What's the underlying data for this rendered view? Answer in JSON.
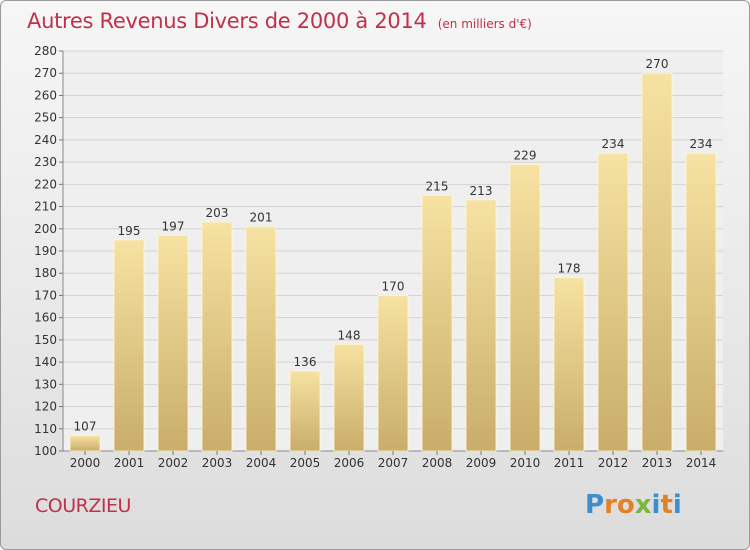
{
  "header": {
    "title": "Autres Revenus Divers de 2000 à 2014",
    "subtitle": "(en milliers d'€)"
  },
  "footer": {
    "location": "COURZIEU",
    "logo_text": "Proxiti"
  },
  "colors": {
    "title": "#c0304a",
    "bar_top": "#f6e2a2",
    "bar_bottom": "#c9ad6a",
    "logo_letters": [
      "#3b8fd1",
      "#e1812a",
      "#e1812a",
      "#7ab83a",
      "#3b8fd1",
      "#e1812a",
      "#3b8fd1"
    ]
  },
  "chart_data": {
    "type": "bar",
    "categories": [
      "2000",
      "2001",
      "2002",
      "2003",
      "2004",
      "2005",
      "2006",
      "2007",
      "2008",
      "2009",
      "2010",
      "2011",
      "2012",
      "2013",
      "2014"
    ],
    "values": [
      107,
      195,
      197,
      203,
      201,
      136,
      148,
      170,
      215,
      213,
      229,
      178,
      234,
      270,
      234
    ],
    "ylim": [
      100,
      280
    ],
    "ytick_step": 10,
    "grid": true,
    "legend": "none"
  }
}
